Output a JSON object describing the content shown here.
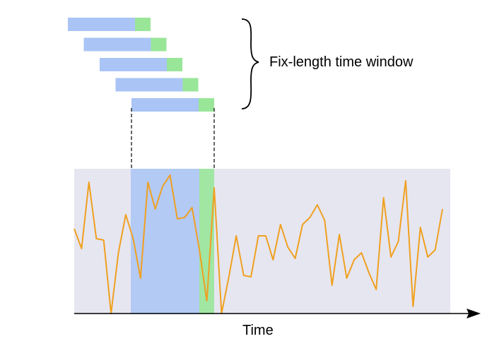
{
  "annotation": {
    "label": "Fix-length time window"
  },
  "axis": {
    "x_label": "Time"
  },
  "colors": {
    "background_panel": "#e6e6f0",
    "window_blue": "#a9c4f5",
    "window_green": "#99e699",
    "signal": "#f0a020",
    "axis": "#000000"
  },
  "windows": [
    {
      "index": 1
    },
    {
      "index": 2
    },
    {
      "index": 3
    },
    {
      "index": 4
    },
    {
      "index": 5
    }
  ],
  "signal": {
    "values": [
      0.6,
      0.46,
      0.93,
      0.53,
      0.52,
      0.0,
      0.43,
      0.7,
      0.53,
      0.25,
      0.93,
      0.74,
      0.9,
      0.98,
      0.67,
      0.68,
      0.75,
      0.45,
      0.09,
      0.89,
      0.0,
      0.26,
      0.55,
      0.27,
      0.26,
      0.55,
      0.55,
      0.38,
      0.63,
      0.47,
      0.39,
      0.63,
      0.68,
      0.77,
      0.66,
      0.2,
      0.56,
      0.25,
      0.38,
      0.43,
      0.29,
      0.17,
      0.82,
      0.4,
      0.51,
      0.94,
      0.05,
      0.61,
      0.4,
      0.45,
      0.74
    ]
  }
}
